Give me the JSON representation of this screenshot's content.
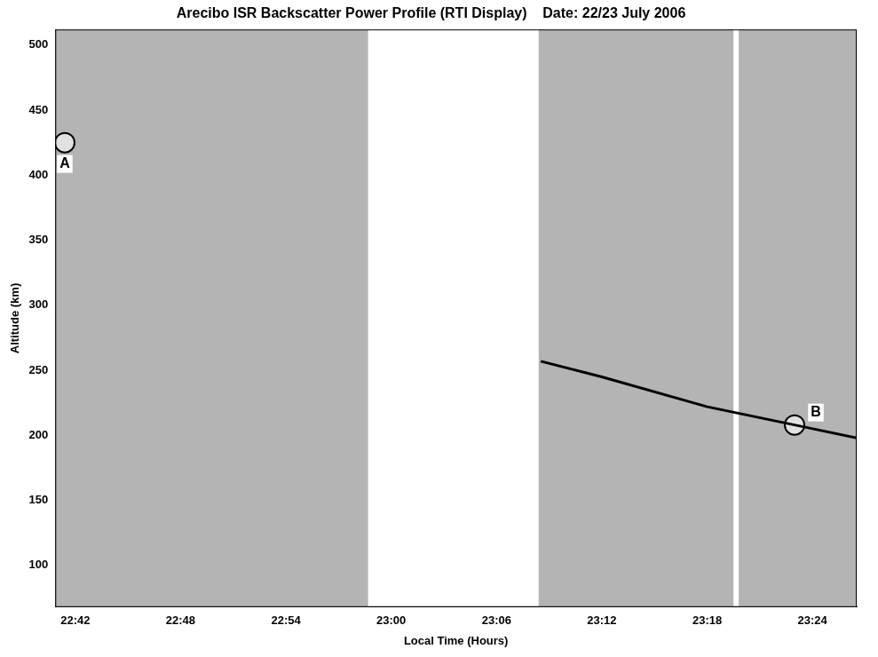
{
  "chart_data": {
    "type": "scatter",
    "title": "Arecibo ISR Backscatter Power Profile (RTI Display)    Date: 22/23 July 2006",
    "x_label": "Local Time (Hours)",
    "y_label": "Altitude (km)",
    "xlim": [
      22.681,
      23.442
    ],
    "xticks": [
      {
        "value": 22.7,
        "label": "22:42"
      },
      {
        "value": 22.8,
        "label": "22:48"
      },
      {
        "value": 22.9,
        "label": "22:54"
      },
      {
        "value": 23.0,
        "label": "23:00"
      },
      {
        "value": 23.1,
        "label": "23:06"
      },
      {
        "value": 23.2,
        "label": "23:12"
      },
      {
        "value": 23.3,
        "label": "23:18"
      },
      {
        "value": 23.4,
        "label": "23:24"
      }
    ],
    "ylim": [
      68,
      512
    ],
    "yticks": [
      100,
      150,
      200,
      250,
      300,
      350,
      400,
      450,
      500
    ],
    "grid": false,
    "data_intervals": [
      [
        22.681,
        22.978
      ],
      [
        23.14,
        23.325
      ],
      [
        23.33,
        23.442
      ]
    ],
    "trail": {
      "x": [
        23.142,
        23.2,
        23.3,
        23.383,
        23.442
      ],
      "y": [
        257,
        245,
        222,
        208,
        198
      ],
      "color": "#000000"
    },
    "annotations": [
      {
        "label": "A",
        "x": 22.69,
        "y": 425
      },
      {
        "label": "B",
        "x": 23.383,
        "y": 208
      }
    ],
    "marker": "circle"
  }
}
